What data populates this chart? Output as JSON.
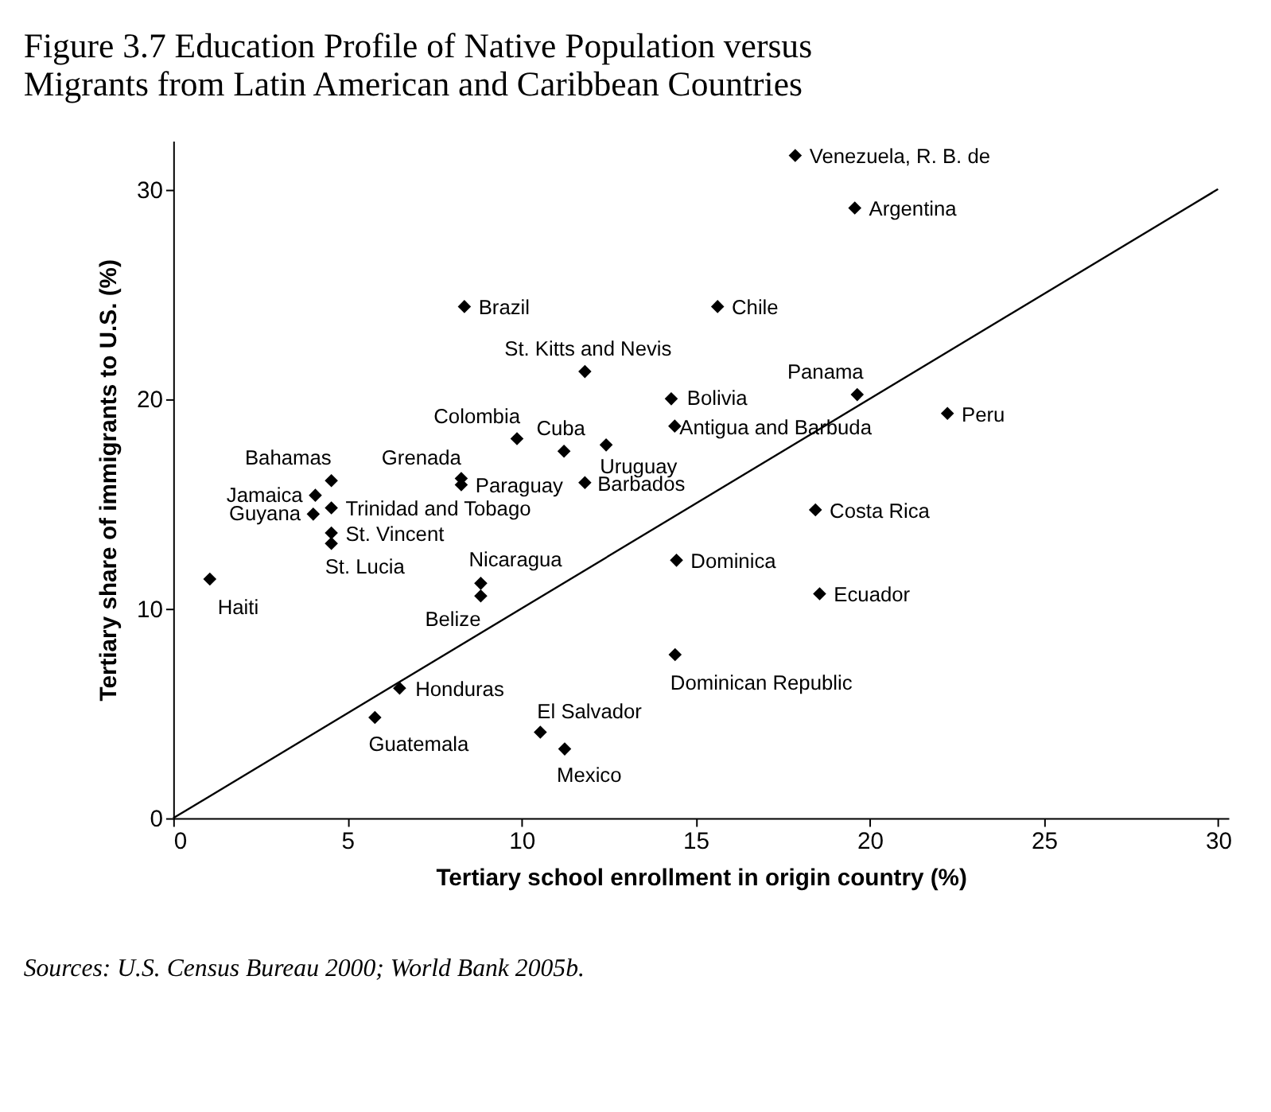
{
  "chart_data": {
    "type": "scatter",
    "title": "Figure 3.7 Education Profile of Native Population versus Migrants from Latin American and Caribbean Countries",
    "xlabel": "Tertiary school enrollment in origin country (%)",
    "ylabel": "Tertiary share of immigrants to U.S. (%)",
    "xlim": [
      0,
      30.3
    ],
    "ylim": [
      0,
      32.3
    ],
    "xticks": [
      0,
      5,
      10,
      15,
      20,
      25,
      30
    ],
    "yticks": [
      0,
      10,
      20,
      30
    ],
    "grid": false,
    "legend": false,
    "marker": "diamond",
    "series": [
      {
        "color": "#000000",
        "x": [
          17.86,
          19.57,
          15.63,
          8.36,
          11.82,
          14.3,
          14.4,
          19.64,
          22.23,
          9.87,
          11.22,
          12.43,
          11.82,
          8.27,
          8.27,
          4.54,
          4.08,
          4.02,
          4.54,
          4.54,
          4.54,
          1.05,
          8.83,
          8.83,
          6.5,
          5.79,
          10.54,
          11.24,
          14.45,
          18.44,
          18.56,
          14.41
        ],
        "values": [
          31.6,
          29.1,
          24.4,
          24.4,
          21.3,
          20.0,
          18.7,
          20.2,
          19.3,
          18.1,
          17.5,
          17.8,
          16.0,
          16.2,
          15.9,
          16.1,
          15.4,
          14.5,
          14.8,
          13.6,
          13.1,
          11.4,
          11.2,
          10.6,
          6.2,
          4.8,
          4.1,
          3.3,
          12.3,
          14.7,
          10.7,
          7.8
        ]
      },
      {
        "type": "line",
        "color": "#000000",
        "line_style": "solid",
        "marker": "none",
        "x": [
          0,
          30
        ],
        "values": [
          0,
          30
        ]
      }
    ],
    "annotations": [
      {
        "text": "Venezuela, R. B. de",
        "x": 17.86,
        "y": 31.6
      },
      {
        "text": "Argentina",
        "x": 19.57,
        "y": 29.1
      },
      {
        "text": "Chile",
        "x": 15.63,
        "y": 24.4
      },
      {
        "text": "Brazil",
        "x": 8.36,
        "y": 24.4
      },
      {
        "text": "St. Kitts and Nevis",
        "x": 11.82,
        "y": 21.3
      },
      {
        "text": "Bolivia",
        "x": 14.3,
        "y": 20.0
      },
      {
        "text": "Antigua and Barbuda",
        "x": 14.4,
        "y": 18.7
      },
      {
        "text": "Panama",
        "x": 19.64,
        "y": 20.2
      },
      {
        "text": "Peru",
        "x": 22.23,
        "y": 19.3
      },
      {
        "text": "Colombia",
        "x": 9.87,
        "y": 18.1
      },
      {
        "text": "Cuba",
        "x": 11.22,
        "y": 17.5
      },
      {
        "text": "Uruguay",
        "x": 12.43,
        "y": 17.8
      },
      {
        "text": "Barbados",
        "x": 11.82,
        "y": 16.0
      },
      {
        "text": "Grenada",
        "x": 8.27,
        "y": 16.2
      },
      {
        "text": "Paraguay",
        "x": 8.27,
        "y": 15.9
      },
      {
        "text": "Bahamas",
        "x": 4.54,
        "y": 16.1
      },
      {
        "text": "Jamaica",
        "x": 4.08,
        "y": 15.4
      },
      {
        "text": "Guyana",
        "x": 4.02,
        "y": 14.5
      },
      {
        "text": "Trinidad and Tobago",
        "x": 4.54,
        "y": 14.8
      },
      {
        "text": "St. Vincent",
        "x": 4.54,
        "y": 13.6
      },
      {
        "text": "St. Lucia",
        "x": 4.54,
        "y": 13.1
      },
      {
        "text": "Haiti",
        "x": 1.05,
        "y": 11.4
      },
      {
        "text": "Nicaragua",
        "x": 8.83,
        "y": 11.2
      },
      {
        "text": "Belize",
        "x": 8.83,
        "y": 10.6
      },
      {
        "text": "Honduras",
        "x": 6.5,
        "y": 6.2
      },
      {
        "text": "Guatemala",
        "x": 5.79,
        "y": 4.8
      },
      {
        "text": "El Salvador",
        "x": 10.54,
        "y": 4.1
      },
      {
        "text": "Mexico",
        "x": 11.24,
        "y": 3.3
      },
      {
        "text": "Dominica",
        "x": 14.45,
        "y": 12.3
      },
      {
        "text": "Costa Rica",
        "x": 18.44,
        "y": 14.7
      },
      {
        "text": "Ecuador",
        "x": 18.56,
        "y": 10.7
      },
      {
        "text": "Dominican Republic",
        "x": 14.41,
        "y": 7.8
      },
      "Sources: U.S. Census Bureau 2000; World Bank 2005b."
    ]
  }
}
